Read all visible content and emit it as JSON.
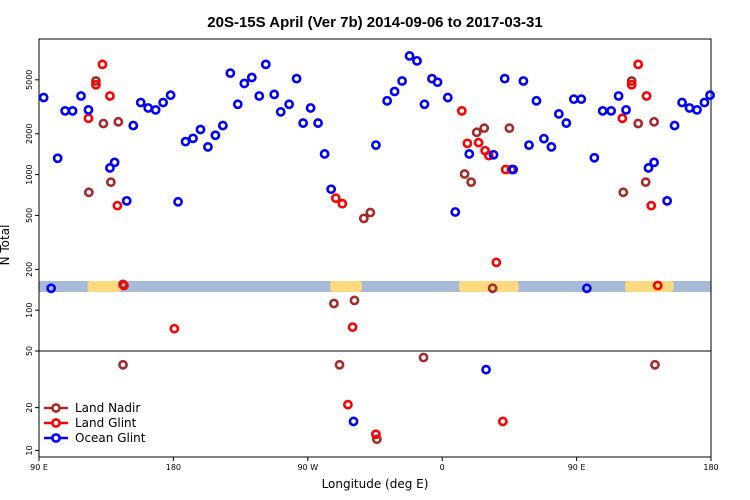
{
  "chart_data": {
    "type": "scatter",
    "title": "20S-15S April (Ver 7b)   2014-09-06 to 2017-03-31",
    "xlabel": "Longitude (deg E)",
    "ylabel": "N Total",
    "xlim": [
      0,
      360
    ],
    "x_ticks": [
      {
        "x": 0,
        "label": "90 E"
      },
      {
        "x": 72,
        "label": "180"
      },
      {
        "x": 144,
        "label": "90 W"
      },
      {
        "x": 216,
        "label": "0"
      },
      {
        "x": 288,
        "label": "90 E"
      },
      {
        "x": 360,
        "label": "180"
      }
    ],
    "y_scale": "log",
    "upper_panel": {
      "ylim": [
        50,
        10000
      ],
      "y_ticks": [
        {
          "v": 50,
          "label": "50"
        },
        {
          "v": 100,
          "label": "100"
        },
        {
          "v": 200,
          "label": "200"
        },
        {
          "v": 500,
          "label": "500"
        },
        {
          "v": 1000,
          "label": "1000"
        },
        {
          "v": 2000,
          "label": "2000"
        },
        {
          "v": 5000,
          "label": "5000"
        }
      ]
    },
    "lower_panel": {
      "ylim": [
        9,
        50
      ],
      "y_ticks": [
        {
          "v": 10,
          "label": "10"
        },
        {
          "v": 20,
          "label": "20"
        }
      ]
    },
    "land_mask": {
      "ocean_color": "#a7bbd8",
      "land_color": "#fdd97f",
      "land_segments": [
        [
          26,
          44
        ],
        [
          156,
          173
        ],
        [
          225,
          257
        ],
        [
          314,
          340
        ]
      ]
    },
    "legend_position": "bottom-left",
    "series": [
      {
        "name": "Land Nadir",
        "color": "#a52a2a",
        "points": [
          [
            26.7,
            740
          ],
          [
            30.5,
            4900
          ],
          [
            34.5,
            2380
          ],
          [
            38.5,
            880
          ],
          [
            42.5,
            2450
          ],
          [
            45.0,
            155
          ],
          [
            158.0,
            112
          ],
          [
            161.0,
            40
          ],
          [
            169.0,
            118
          ],
          [
            174.0,
            475
          ],
          [
            177.5,
            525
          ],
          [
            181.0,
            12
          ],
          [
            206.0,
            45
          ],
          [
            228.0,
            1010
          ],
          [
            231.5,
            880
          ],
          [
            234.5,
            2050
          ],
          [
            238.5,
            2200
          ],
          [
            243.0,
            145
          ],
          [
            252.0,
            2200
          ],
          [
            253.0,
            1090
          ],
          [
            45.0,
            40
          ],
          [
            313.0,
            740
          ],
          [
            317.5,
            4900
          ],
          [
            321.0,
            2380
          ],
          [
            325.0,
            880
          ],
          [
            329.5,
            2450
          ],
          [
            330.0,
            40
          ]
        ]
      },
      {
        "name": "Land Glint",
        "color": "#ff0000",
        "points": [
          [
            26.5,
            2600
          ],
          [
            30.5,
            4600
          ],
          [
            34.0,
            6500
          ],
          [
            38.0,
            3800
          ],
          [
            42.0,
            590
          ],
          [
            45.5,
            152
          ],
          [
            72.5,
            73
          ],
          [
            159.0,
            670
          ],
          [
            162.5,
            610
          ],
          [
            165.5,
            21
          ],
          [
            168.0,
            75
          ],
          [
            180.5,
            13
          ],
          [
            226.5,
            2950
          ],
          [
            229.5,
            1700
          ],
          [
            235.5,
            1720
          ],
          [
            239.0,
            1500
          ],
          [
            241.0,
            1380
          ],
          [
            245.0,
            225
          ],
          [
            248.5,
            16
          ],
          [
            250.0,
            1090
          ],
          [
            312.5,
            2600
          ],
          [
            317.5,
            4600
          ],
          [
            321.0,
            6500
          ],
          [
            325.5,
            3800
          ],
          [
            328.0,
            590
          ],
          [
            331.5,
            152
          ]
        ]
      },
      {
        "name": "Ocean Glint",
        "color": "#0000ff",
        "points": [
          [
            2.5,
            3700
          ],
          [
            6.5,
            145
          ],
          [
            10.0,
            1320
          ],
          [
            14.0,
            2950
          ],
          [
            18.0,
            2950
          ],
          [
            22.5,
            3800
          ],
          [
            26.5,
            3000
          ],
          [
            38.0,
            1120
          ],
          [
            40.5,
            1230
          ],
          [
            47.0,
            640
          ],
          [
            50.5,
            2300
          ],
          [
            54.5,
            3400
          ],
          [
            58.5,
            3100
          ],
          [
            62.5,
            3000
          ],
          [
            66.5,
            3400
          ],
          [
            70.5,
            3850
          ],
          [
            74.5,
            630
          ],
          [
            78.5,
            1750
          ],
          [
            82.5,
            1850
          ],
          [
            86.5,
            2150
          ],
          [
            90.5,
            1600
          ],
          [
            94.5,
            1950
          ],
          [
            98.5,
            2300
          ],
          [
            102.5,
            5600
          ],
          [
            106.5,
            3300
          ],
          [
            110.0,
            4700
          ],
          [
            114.0,
            5200
          ],
          [
            118.0,
            3800
          ],
          [
            121.5,
            6500
          ],
          [
            126.0,
            3900
          ],
          [
            129.5,
            2900
          ],
          [
            134.0,
            3300
          ],
          [
            138.0,
            5100
          ],
          [
            141.5,
            2400
          ],
          [
            145.5,
            3100
          ],
          [
            149.5,
            2400
          ],
          [
            153.0,
            1420
          ],
          [
            156.5,
            780
          ],
          [
            168.5,
            16
          ],
          [
            180.5,
            1650
          ],
          [
            186.5,
            3500
          ],
          [
            190.5,
            4100
          ],
          [
            194.5,
            4900
          ],
          [
            198.5,
            7500
          ],
          [
            202.5,
            6900
          ],
          [
            206.5,
            3300
          ],
          [
            210.5,
            5100
          ],
          [
            213.5,
            4800
          ],
          [
            219.0,
            3700
          ],
          [
            223.0,
            530
          ],
          [
            230.5,
            1420
          ],
          [
            239.5,
            37
          ],
          [
            243.5,
            1400
          ],
          [
            249.5,
            5100
          ],
          [
            254.0,
            1090
          ],
          [
            259.5,
            4900
          ],
          [
            262.5,
            1650
          ],
          [
            266.5,
            3500
          ],
          [
            270.5,
            1840
          ],
          [
            274.5,
            1600
          ],
          [
            278.5,
            2800
          ],
          [
            282.5,
            2400
          ],
          [
            286.5,
            3600
          ],
          [
            290.5,
            3600
          ],
          [
            293.5,
            145
          ],
          [
            297.5,
            1330
          ],
          [
            302.0,
            2950
          ],
          [
            306.5,
            2950
          ],
          [
            310.5,
            3800
          ],
          [
            314.5,
            3000
          ],
          [
            326.5,
            1120
          ],
          [
            329.5,
            1230
          ],
          [
            336.5,
            640
          ],
          [
            340.5,
            2300
          ],
          [
            344.5,
            3400
          ],
          [
            348.5,
            3100
          ],
          [
            352.5,
            3000
          ],
          [
            356.5,
            3400
          ],
          [
            359.5,
            3850
          ]
        ]
      }
    ]
  }
}
